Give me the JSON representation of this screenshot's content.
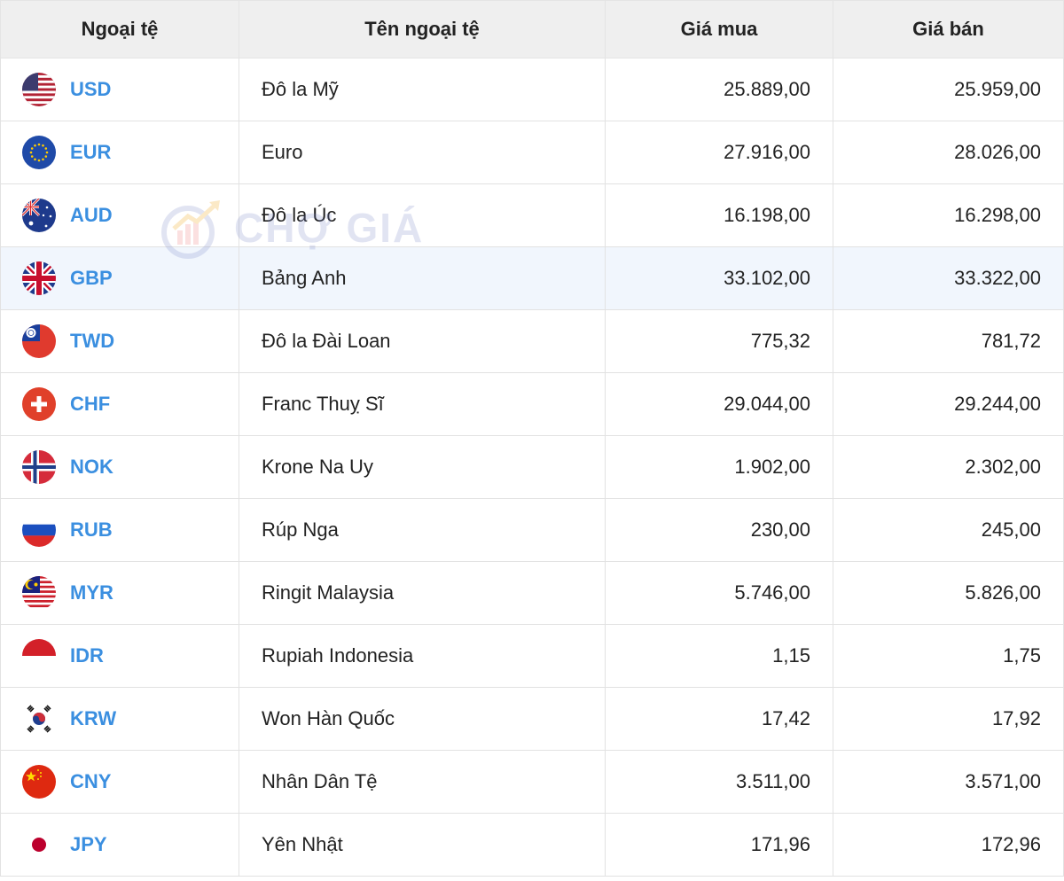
{
  "headers": {
    "code": "Ngoại tệ",
    "name": "Tên ngoại tệ",
    "buy": "Giá mua",
    "sell": "Giá bán"
  },
  "watermark": {
    "text": "CHỢ GIÁ"
  },
  "colors": {
    "code_link": "#3b8fe0",
    "price_up": "#3cc178",
    "price_down": "#e12e2e",
    "header_bg": "#efefef",
    "highlight_row_bg": "#f1f6fd"
  },
  "rows": [
    {
      "code": "USD",
      "name": "Đô la Mỹ",
      "buy": "25.889,00",
      "sell": "25.959,00",
      "trend": "up",
      "flag": "us-flag-icon"
    },
    {
      "code": "EUR",
      "name": "Euro",
      "buy": "27.916,00",
      "sell": "28.026,00",
      "trend": "down",
      "flag": "eu-flag-icon"
    },
    {
      "code": "AUD",
      "name": "Đô la Úc",
      "buy": "16.198,00",
      "sell": "16.298,00",
      "trend": "down",
      "flag": "au-flag-icon"
    },
    {
      "code": "GBP",
      "name": "Bảng Anh",
      "buy": "33.102,00",
      "sell": "33.322,00",
      "trend": "down",
      "flag": "gb-flag-icon",
      "highlight": true
    },
    {
      "code": "TWD",
      "name": "Đô la Đài Loan",
      "buy": "775,32",
      "sell": "781,72",
      "trend": "up",
      "flag": "tw-flag-icon"
    },
    {
      "code": "CHF",
      "name": "Franc Thuỵ Sĩ",
      "buy": "29.044,00",
      "sell": "29.244,00",
      "trend": "down",
      "flag": "ch-flag-icon"
    },
    {
      "code": "NOK",
      "name": "Krone Na Uy",
      "buy": "1.902,00",
      "sell": "2.302,00",
      "trend": "down",
      "flag": "no-flag-icon"
    },
    {
      "code": "RUB",
      "name": "Rúp Nga",
      "buy": "230,00",
      "sell": "245,00",
      "trend": "up",
      "flag": "ru-flag-icon"
    },
    {
      "code": "MYR",
      "name": "Ringit Malaysia",
      "buy": "5.746,00",
      "sell": "5.826,00",
      "trend": "down",
      "flag": "my-flag-icon"
    },
    {
      "code": "IDR",
      "name": "Rupiah Indonesia",
      "buy": "1,15",
      "sell": "1,75",
      "trend": "up",
      "flag": "id-flag-icon"
    },
    {
      "code": "KRW",
      "name": "Won Hàn Quốc",
      "buy": "17,42",
      "sell": "17,92",
      "trend": "up",
      "flag": "kr-flag-icon"
    },
    {
      "code": "CNY",
      "name": "Nhân Dân Tệ",
      "buy": "3.511,00",
      "sell": "3.571,00",
      "trend": "down",
      "flag": "cn-flag-icon"
    },
    {
      "code": "JPY",
      "name": "Yên Nhật",
      "buy": "171,96",
      "sell": "172,96",
      "trend": "up",
      "flag": "jp-flag-icon"
    }
  ]
}
